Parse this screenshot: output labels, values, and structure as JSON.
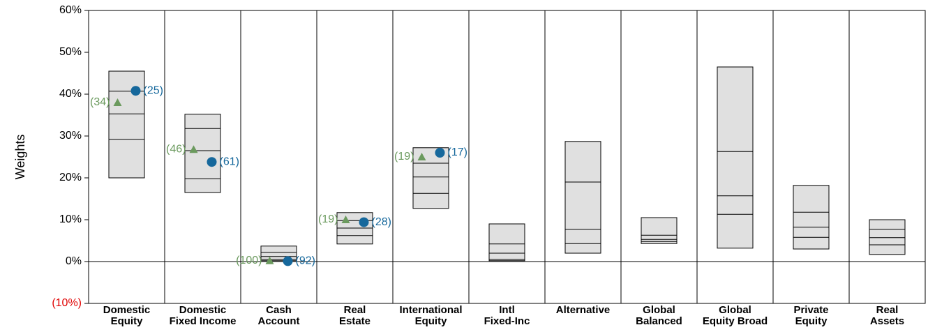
{
  "chart_data": {
    "type": "floating-box",
    "y_label": "Weights",
    "categories": [
      "Domestic\nEquity",
      "Domestic\nFixed Income",
      "Cash\nAccount",
      "Real\nEstate",
      "International\nEquity",
      "Intl\nFixed-Inc",
      "Alternative",
      "Global\nBalanced",
      "Global\nEquity Broad",
      "Private\nEquity",
      "Real\nAssets"
    ],
    "boxes": {
      "color": "#e0e0e0",
      "p95": [
        45.5,
        35.2,
        3.7,
        11.7,
        27.2,
        9.0,
        28.7,
        10.5,
        46.5,
        18.2,
        10.0
      ],
      "p75": [
        40.7,
        31.8,
        2.2,
        9.8,
        23.5,
        4.2,
        19.0,
        6.3,
        26.3,
        11.8,
        7.7
      ],
      "p50": [
        35.3,
        26.5,
        1.2,
        8.0,
        20.2,
        2.0,
        7.7,
        5.3,
        15.7,
        8.2,
        5.7
      ],
      "p25": [
        29.2,
        19.8,
        0.5,
        6.2,
        16.3,
        0.5,
        4.3,
        4.8,
        11.3,
        5.8,
        4.0
      ],
      "p5": [
        20.0,
        16.5,
        0.2,
        4.2,
        12.7,
        0.2,
        2.0,
        4.3,
        3.2,
        3.0,
        1.7
      ]
    },
    "series": [
      {
        "marker": "triangle",
        "color": "#6b9a5e",
        "side": "left",
        "values": [
          38.0,
          26.8,
          0.2,
          10.0,
          25.0,
          null,
          null,
          null,
          null,
          null,
          null
        ],
        "rank_labels": [
          "(34)",
          "(46)",
          "(100)",
          "(19)",
          "(19)",
          null,
          null,
          null,
          null,
          null,
          null
        ]
      },
      {
        "marker": "circle",
        "color": "#16689c",
        "side": "right",
        "values": [
          40.8,
          23.8,
          0.1,
          9.4,
          26.0,
          null,
          null,
          null,
          null,
          null,
          null
        ],
        "rank_labels": [
          "(25)",
          "(61)",
          "(92)",
          "(28)",
          "(17)",
          null,
          null,
          null,
          null,
          null,
          null
        ]
      }
    ],
    "ylim": [
      -10,
      60
    ],
    "yticks": [
      {
        "value": -10,
        "label": "(10%)"
      },
      {
        "value": 0,
        "label": "0%"
      },
      {
        "value": 10,
        "label": "10%"
      },
      {
        "value": 20,
        "label": "20%"
      },
      {
        "value": 30,
        "label": "30%"
      },
      {
        "value": 40,
        "label": "40%"
      },
      {
        "value": 50,
        "label": "50%"
      },
      {
        "value": 60,
        "label": "60%"
      }
    ],
    "negative_tick_color": "#e00000"
  }
}
